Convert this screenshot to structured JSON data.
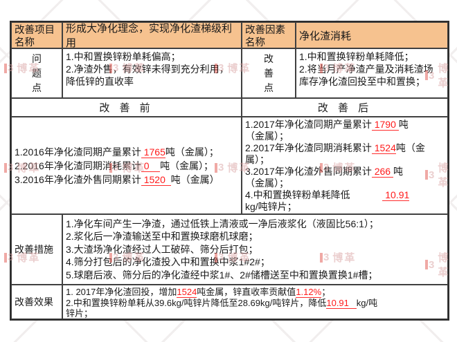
{
  "colors": {
    "header_bg": "#F6C28F",
    "highlight_red": "#FF1A1A",
    "border": "#404040",
    "watermark_pink": "#D9A0A0",
    "watermark_red": "#E2564E"
  },
  "watermark": {
    "mark": "3",
    "text": "博革"
  },
  "table": {
    "header": {
      "project_label": "改善项目名称",
      "project_value": "形成大净化理念，实现净化渣梯级利用",
      "factor_label": "改善因素名称",
      "factor_value": "净化渣消耗"
    },
    "problem": {
      "label": "问题点",
      "lines": [
        [
          {
            "t": "1.中和置换锌粉单耗偏高；"
          }
        ],
        [
          {
            "t": "2.净渣外售，有效锌未得到充分利用，"
          }
        ],
        [
          {
            "t": "降低锌的直收率"
          }
        ]
      ]
    },
    "improve_point": {
      "label": "改善点",
      "lines": [
        [
          {
            "t": "1.中和置换锌粉单耗降低；"
          }
        ],
        [
          {
            "t": "2.将当月产净渣产量及消耗渣场"
          }
        ],
        [
          {
            "t": "库存净化渣回投至中和置换；"
          }
        ]
      ]
    },
    "before": {
      "title": "改 善 前",
      "lines": [
        [
          {
            "t": "1.2016年净化渣同期产量累计"
          },
          {
            "t": " 1765",
            "s": "ru"
          },
          {
            "t": "吨（金属）；"
          }
        ],
        [
          {
            "t": "2.2016年净化渣同期消耗累计"
          },
          {
            "t": " 0    ",
            "s": "ru"
          },
          {
            "t": "吨（金属）；"
          }
        ],
        [
          {
            "t": "3.2016年净化渣外售同期累计"
          },
          {
            "t": " 1520  ",
            "s": "ru"
          },
          {
            "t": "吨（金属）"
          }
        ]
      ]
    },
    "after": {
      "title": "改 善 后",
      "lines": [
        [
          {
            "t": "1.2017年净化渣同期产量累计"
          },
          {
            "t": " 1790 ",
            "s": "ru"
          },
          {
            "t": "吨"
          }
        ],
        [
          {
            "t": "（金属）；"
          }
        ],
        [
          {
            "t": "2.2017年净化渣同期消耗累计"
          },
          {
            "t": " 1524",
            "s": "ru"
          },
          {
            "t": "吨（金"
          }
        ],
        [
          {
            "t": "属）；"
          }
        ],
        [
          {
            "t": "3.2017年净化渣外售同期累计"
          },
          {
            "t": " 266 ",
            "s": "ru"
          },
          {
            "t": "吨"
          }
        ],
        [
          {
            "t": "（金属）；"
          }
        ],
        [
          {
            "t": "4.中和置换锌粉单耗降低"
          },
          {
            "t": "            "
          },
          {
            "t": " 10.91",
            "s": "ru"
          }
        ],
        [
          {
            "t": "kg/吨锌片；"
          }
        ]
      ]
    },
    "measures": {
      "label": "改善措施",
      "lines": [
        [
          {
            "t": "1.净化车间产生一净渣，通过低铁上清液或一净后液浆化（液固比56:1）；"
          }
        ],
        [
          {
            "t": "2.浆化后一净渣输送至中和置换球磨机球磨；"
          }
        ],
        [
          {
            "t": "3.大渣场净化渣经过人工破碎、筛分后打包；"
          }
        ],
        [
          {
            "t": "4.筛分打包后的净化渣投入中和置换中浆1#2#；"
          }
        ],
        [
          {
            "t": "5.球磨后液、筛分后的净化渣经中浆1#、2#储槽送至中和置换置换1#槽；"
          }
        ]
      ]
    },
    "effects": {
      "label": "改善效果",
      "lines": [
        [
          {
            "t": "1. 2017年净化渣回投，增加"
          },
          {
            "t": "1524",
            "s": "ru"
          },
          {
            "t": "吨金属，锌直收率贡献值"
          },
          {
            "t": "1.12%",
            "s": "ru"
          },
          {
            "t": "；"
          }
        ],
        [
          {
            "t": "2.中和置换锌粉单耗从39.6kg/吨锌片降低至28.69kg/吨锌片，降低"
          },
          {
            "t": "10.91   ",
            "s": "ru"
          },
          {
            "t": "kg/吨"
          }
        ],
        [
          {
            "t": "锌片；"
          }
        ]
      ]
    }
  }
}
